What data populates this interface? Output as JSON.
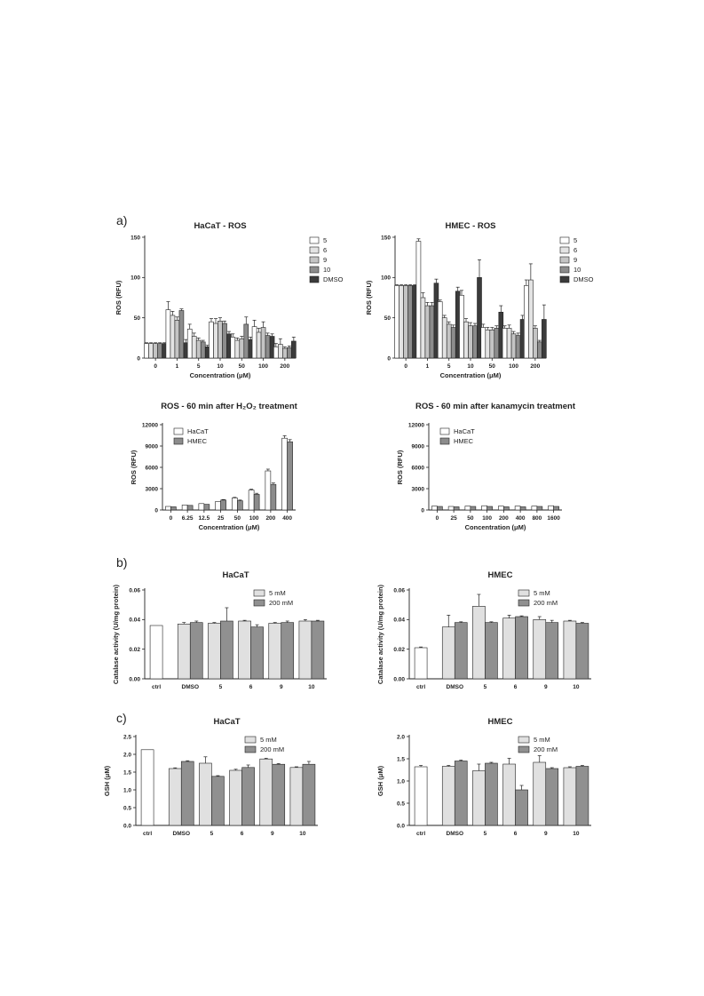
{
  "panel_labels": {
    "a": "a)",
    "b": "b)",
    "c": "c)"
  },
  "palette": {
    "c5": "#ffffff",
    "c6": "#e3e3e3",
    "c9": "#c4c4c4",
    "c10": "#8c8c8c",
    "dmso": "#3b3b3b",
    "hacat": "#ffffff",
    "hmec": "#8c8c8c",
    "mM5": "#e0e0e0",
    "mM200": "#909090",
    "ctrl": "#ffffff"
  },
  "chart_data": [
    {
      "id": "hacat_ros",
      "type": "bar",
      "title": "HaCaT - ROS",
      "xlabel": "Concentration (μM)",
      "ylabel": "ROS (RFU)",
      "ylim": [
        0,
        150
      ],
      "yticks": [
        0,
        50,
        100,
        150
      ],
      "categories": [
        "0",
        "1",
        "5",
        "10",
        "50",
        "100",
        "200"
      ],
      "legend_position": "top-right",
      "series": [
        {
          "name": "5",
          "color": "#ffffff",
          "values": [
            18,
            60,
            36,
            45,
            26,
            39,
            14
          ],
          "errors": [
            1,
            10,
            6,
            4,
            4,
            8,
            4
          ]
        },
        {
          "name": "6",
          "color": "#e3e3e3",
          "values": [
            18,
            53,
            27,
            43,
            22,
            32,
            17
          ],
          "errors": [
            1,
            5,
            4,
            6,
            3,
            5,
            7
          ]
        },
        {
          "name": "9",
          "color": "#c4c4c4",
          "values": [
            18,
            47,
            22,
            46,
            24,
            38,
            12
          ],
          "errors": [
            1,
            4,
            3,
            4,
            3,
            7,
            2
          ]
        },
        {
          "name": "10",
          "color": "#8c8c8c",
          "values": [
            18,
            59,
            20,
            43,
            42,
            28,
            13
          ],
          "errors": [
            1,
            2,
            2,
            3,
            9,
            3,
            2
          ]
        },
        {
          "name": "DMSO",
          "color": "#3b3b3b",
          "values": [
            18,
            19,
            14,
            30,
            23,
            27,
            21
          ],
          "errors": [
            1,
            4,
            2,
            3,
            3,
            3,
            5
          ]
        }
      ]
    },
    {
      "id": "hmec_ros",
      "type": "bar",
      "title": "HMEC - ROS",
      "xlabel": "Concentration (μM)",
      "ylabel": "ROS (RFU)",
      "ylim": [
        0,
        150
      ],
      "yticks": [
        0,
        50,
        100,
        150
      ],
      "categories": [
        "0",
        "1",
        "5",
        "10",
        "50",
        "100",
        "200"
      ],
      "legend_position": "top-right",
      "series": [
        {
          "name": "5",
          "color": "#ffffff",
          "values": [
            90,
            145,
            70,
            78,
            38,
            37,
            90
          ],
          "errors": [
            1,
            3,
            2,
            6,
            4,
            3,
            7
          ]
        },
        {
          "name": "6",
          "color": "#e3e3e3",
          "values": [
            90,
            75,
            50,
            45,
            35,
            37,
            97
          ],
          "errors": [
            1,
            6,
            3,
            4,
            3,
            4,
            20
          ]
        },
        {
          "name": "9",
          "color": "#c4c4c4",
          "values": [
            90,
            65,
            42,
            40,
            35,
            30,
            37
          ],
          "errors": [
            1,
            4,
            3,
            4,
            3,
            3,
            3
          ]
        },
        {
          "name": "10",
          "color": "#8c8c8c",
          "values": [
            90,
            65,
            38,
            40,
            37,
            28,
            20
          ],
          "errors": [
            1,
            4,
            3,
            3,
            3,
            3,
            2
          ]
        },
        {
          "name": "DMSO",
          "color": "#3b3b3b",
          "values": [
            90,
            93,
            83,
            100,
            57,
            48,
            48
          ],
          "errors": [
            1,
            5,
            5,
            22,
            8,
            5,
            18
          ]
        }
      ]
    },
    {
      "id": "h2o2",
      "type": "bar",
      "title": "ROS - 60 min after H₂O₂ treatment",
      "xlabel": "Concentration (μM)",
      "ylabel": "ROS (RFU)",
      "ylim": [
        0,
        12000
      ],
      "yticks": [
        0,
        3000,
        6000,
        9000,
        12000
      ],
      "categories": [
        "0",
        "6.25",
        "12.5",
        "25",
        "50",
        "100",
        "200",
        "400"
      ],
      "legend_position": "top-left",
      "series": [
        {
          "name": "HaCaT",
          "color": "#ffffff",
          "values": [
            500,
            700,
            900,
            1200,
            1700,
            2800,
            5500,
            10100
          ],
          "errors": [
            40,
            40,
            50,
            60,
            80,
            120,
            250,
            350
          ]
        },
        {
          "name": "HMEC",
          "color": "#8c8c8c",
          "values": [
            450,
            650,
            800,
            1400,
            1300,
            2200,
            3600,
            9600
          ],
          "errors": [
            40,
            40,
            50,
            70,
            100,
            150,
            200,
            300
          ]
        }
      ]
    },
    {
      "id": "kanamycin",
      "type": "bar",
      "title": "ROS - 60 min after kanamycin treatment",
      "xlabel": "Concentration (μM)",
      "ylabel": "ROS (RFU)",
      "ylim": [
        0,
        12000
      ],
      "yticks": [
        0,
        3000,
        6000,
        9000,
        12000
      ],
      "categories": [
        "0",
        "25",
        "50",
        "100",
        "200",
        "400",
        "800",
        "1600"
      ],
      "legend_position": "top-left",
      "series": [
        {
          "name": "HaCaT",
          "color": "#ffffff",
          "values": [
            550,
            500,
            550,
            600,
            550,
            550,
            550,
            600
          ],
          "errors": [
            30,
            30,
            30,
            30,
            30,
            30,
            30,
            30
          ]
        },
        {
          "name": "HMEC",
          "color": "#8c8c8c",
          "values": [
            500,
            450,
            500,
            500,
            450,
            450,
            500,
            500
          ],
          "errors": [
            30,
            30,
            30,
            30,
            30,
            30,
            30,
            30
          ]
        }
      ]
    },
    {
      "id": "hacat_catalase",
      "type": "bar",
      "title": "HaCaT",
      "xlabel": "",
      "ylabel": "Catalase activity (U/mg protein)",
      "ylim": [
        0,
        0.06
      ],
      "yticks": [
        "0.00",
        "0.02",
        "0.04",
        "0.06"
      ],
      "categories": [
        "ctrl",
        "DMSO",
        "5",
        "6",
        "9",
        "10"
      ],
      "legend_position": "top-right",
      "ctrl": {
        "value": 0.036,
        "error": 0
      },
      "series": [
        {
          "name": "5 mM",
          "color": "#e0e0e0",
          "values": [
            null,
            0.037,
            0.0375,
            0.039,
            0.0375,
            0.039
          ],
          "errors": [
            0,
            0.001,
            0.0005,
            0.0005,
            0.0005,
            0.001
          ]
        },
        {
          "name": "200 mM",
          "color": "#909090",
          "values": [
            null,
            0.038,
            0.039,
            0.035,
            0.038,
            0.039
          ],
          "errors": [
            0,
            0.001,
            0.009,
            0.0015,
            0.001,
            0.0005
          ]
        }
      ]
    },
    {
      "id": "hmec_catalase",
      "type": "bar",
      "title": "HMEC",
      "xlabel": "",
      "ylabel": "Catalase activity (U/mg protein)",
      "ylim": [
        0,
        0.06
      ],
      "yticks": [
        "0.00",
        "0.02",
        "0.04",
        "0.06"
      ],
      "categories": [
        "ctrl",
        "DMSO",
        "5",
        "6",
        "9",
        "10"
      ],
      "legend_position": "top-right",
      "ctrl": {
        "value": 0.021,
        "error": 0.0005
      },
      "series": [
        {
          "name": "5 mM",
          "color": "#e0e0e0",
          "values": [
            null,
            0.035,
            0.049,
            0.041,
            0.04,
            0.039
          ],
          "errors": [
            0,
            0.008,
            0.008,
            0.002,
            0.002,
            0.0005
          ]
        },
        {
          "name": "200 mM",
          "color": "#909090",
          "values": [
            null,
            0.038,
            0.038,
            0.042,
            0.038,
            0.0375
          ],
          "errors": [
            0,
            0.0005,
            0.0005,
            0.0005,
            0.0015,
            0.0005
          ]
        }
      ]
    },
    {
      "id": "hacat_gsh",
      "type": "bar",
      "title": "HaCaT",
      "xlabel": "",
      "ylabel": "GSH (μM)",
      "ylim": [
        0,
        2.5
      ],
      "yticks": [
        "0.0",
        "0.5",
        "1.0",
        "1.5",
        "2.0",
        "2.5"
      ],
      "categories": [
        "ctrl",
        "DMSO",
        "5",
        "6",
        "9",
        "10"
      ],
      "legend_position": "top-right",
      "ctrl": {
        "value": 2.13,
        "error": 0
      },
      "series": [
        {
          "name": "5 mM",
          "color": "#e0e0e0",
          "values": [
            null,
            1.6,
            1.75,
            1.55,
            1.87,
            1.63
          ],
          "errors": [
            0,
            0.02,
            0.18,
            0.03,
            0.02,
            0.02
          ]
        },
        {
          "name": "200 mM",
          "color": "#909090",
          "values": [
            null,
            1.8,
            1.38,
            1.63,
            1.72,
            1.72
          ],
          "errors": [
            0,
            0.02,
            0.02,
            0.07,
            0.02,
            0.08
          ]
        }
      ]
    },
    {
      "id": "hmec_gsh",
      "type": "bar",
      "title": "HMEC",
      "xlabel": "",
      "ylabel": "GSH (μM)",
      "ylim": [
        0,
        2.0
      ],
      "yticks": [
        "0.0",
        "0.5",
        "1.0",
        "1.5",
        "2.0"
      ],
      "categories": [
        "ctrl",
        "DMSO",
        "5",
        "6",
        "9",
        "10"
      ],
      "legend_position": "top-right",
      "ctrl": {
        "value": 1.32,
        "error": 0.03
      },
      "series": [
        {
          "name": "5 mM",
          "color": "#e0e0e0",
          "values": [
            null,
            1.33,
            1.23,
            1.38,
            1.42,
            1.3
          ],
          "errors": [
            0,
            0.02,
            0.15,
            0.13,
            0.15,
            0.02
          ]
        },
        {
          "name": "200 mM",
          "color": "#909090",
          "values": [
            null,
            1.45,
            1.4,
            0.8,
            1.28,
            1.33
          ],
          "errors": [
            0,
            0.02,
            0.02,
            0.1,
            0.02,
            0.02
          ]
        }
      ]
    }
  ]
}
